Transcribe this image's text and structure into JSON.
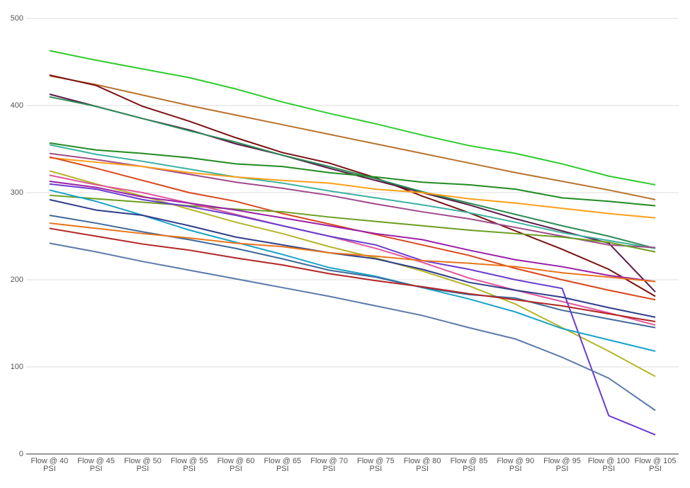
{
  "chart_data": {
    "type": "line",
    "categories": [
      "Flow @ 40 PSI",
      "Flow @ 45 PSI",
      "Flow @ 50 PSI",
      "Flow @ 55 PSI",
      "Flow @ 60 PSI",
      "Flow @ 65 PSI",
      "Flow @ 70 PSI",
      "Flow @ 75 PSI",
      "Flow @ 80 PSI",
      "Flow @ 85 PSI",
      "Flow @ 90 PSI",
      "Flow @ 95 PSI",
      "Flow @ 100 PSI",
      "Flow @ 105 PSI"
    ],
    "ylim": [
      0,
      500
    ],
    "yticks": [
      0,
      100,
      200,
      300,
      400,
      500
    ],
    "grid": true,
    "series": [
      {
        "color": "#2ecc2e",
        "values": [
          463,
          452,
          442,
          432,
          419,
          404,
          391,
          379,
          366,
          354,
          345,
          333,
          319,
          309
        ]
      },
      {
        "color": "#b8732e",
        "values": [
          434,
          424,
          412,
          400,
          389,
          378,
          367,
          356,
          345,
          334,
          323,
          313,
          303,
          292
        ]
      },
      {
        "color": "#7b1010",
        "values": [
          435,
          423,
          399,
          382,
          363,
          346,
          334,
          317,
          296,
          277,
          256,
          235,
          212,
          181
        ]
      },
      {
        "color": "#5b1a4a",
        "values": [
          413,
          399,
          385,
          372,
          356,
          343,
          328,
          314,
          300,
          286,
          270,
          256,
          242,
          186
        ]
      },
      {
        "color": "#2e8b57",
        "values": [
          410,
          399,
          385,
          371,
          358,
          343,
          330,
          316,
          301,
          288,
          275,
          262,
          250,
          236
        ]
      },
      {
        "color": "#228b22",
        "values": [
          357,
          349,
          345,
          340,
          333,
          330,
          323,
          318,
          312,
          309,
          304,
          294,
          290,
          285
        ]
      },
      {
        "color": "#3cb3a0",
        "values": [
          355,
          344,
          336,
          327,
          318,
          311,
          302,
          294,
          286,
          277,
          266,
          254,
          245,
          236
        ]
      },
      {
        "color": "#a04a8c",
        "values": [
          345,
          338,
          330,
          321,
          312,
          305,
          297,
          287,
          278,
          270,
          260,
          250,
          240,
          237
        ]
      },
      {
        "color": "#ff9f1a",
        "values": [
          340,
          335,
          330,
          323,
          318,
          314,
          311,
          304,
          300,
          293,
          288,
          282,
          276,
          271
        ]
      },
      {
        "color": "#d9471e",
        "values": [
          341,
          328,
          314,
          300,
          290,
          276,
          264,
          252,
          240,
          228,
          213,
          200,
          188,
          177
        ]
      },
      {
        "color": "#b5b52a",
        "values": [
          325,
          310,
          296,
          281,
          266,
          253,
          238,
          225,
          210,
          193,
          172,
          145,
          118,
          89
        ]
      },
      {
        "color": "#6b9e1f",
        "values": [
          297,
          293,
          289,
          285,
          281,
          278,
          272,
          267,
          262,
          257,
          253,
          249,
          243,
          232
        ]
      },
      {
        "color": "#e0569a",
        "values": [
          320,
          309,
          300,
          288,
          275,
          262,
          250,
          236,
          220,
          202,
          188,
          175,
          162,
          148
        ]
      },
      {
        "color": "#9b1fa8",
        "values": [
          313,
          306,
          295,
          288,
          280,
          271,
          262,
          253,
          246,
          234,
          223,
          215,
          205,
          198
        ]
      },
      {
        "color": "#6a3cd0",
        "values": [
          310,
          304,
          292,
          284,
          274,
          262,
          250,
          240,
          222,
          212,
          200,
          190,
          44,
          22
        ]
      },
      {
        "color": "#1aa3c8",
        "values": [
          303,
          290,
          274,
          257,
          243,
          229,
          214,
          204,
          191,
          178,
          163,
          144,
          131,
          118
        ]
      },
      {
        "color": "#2f3e8a",
        "values": [
          292,
          280,
          274,
          262,
          249,
          240,
          231,
          224,
          212,
          197,
          188,
          180,
          168,
          157
        ]
      },
      {
        "color": "#3f6a9a",
        "values": [
          274,
          265,
          255,
          246,
          236,
          224,
          211,
          203,
          191,
          183,
          179,
          165,
          155,
          145
        ]
      },
      {
        "color": "#e8751a",
        "values": [
          265,
          259,
          253,
          248,
          242,
          238,
          231,
          227,
          222,
          219,
          215,
          208,
          203,
          198
        ]
      },
      {
        "color": "#b32424",
        "values": [
          259,
          250,
          241,
          234,
          225,
          217,
          207,
          199,
          192,
          184,
          177,
          170,
          161,
          152
        ]
      },
      {
        "color": "#5b7bab",
        "values": [
          242,
          232,
          221,
          211,
          201,
          191,
          181,
          170,
          159,
          145,
          132,
          111,
          87,
          50
        ]
      }
    ]
  }
}
